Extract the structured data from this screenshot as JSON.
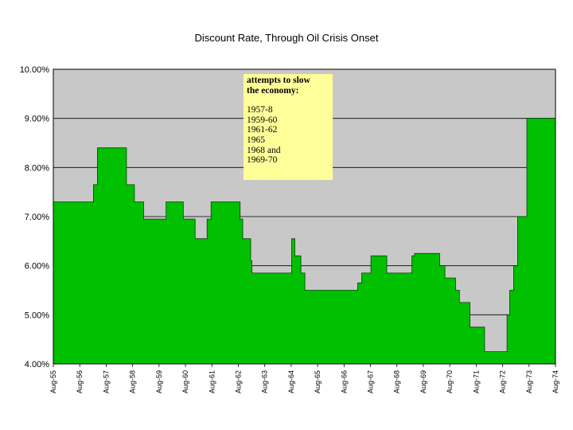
{
  "chart_data": {
    "type": "area",
    "title": "Discount Rate, Through Oil Crisis Onset",
    "xlabel": "",
    "ylabel": "",
    "ylim": [
      4.0,
      10.0
    ],
    "yticks": [
      "4.00%",
      "5.00%",
      "6.00%",
      "7.00%",
      "8.00%",
      "9.00%",
      "10.00%"
    ],
    "ytick_values": [
      4,
      5,
      6,
      7,
      8,
      9,
      10
    ],
    "xticks": [
      "Aug-55",
      "Aug-56",
      "Aug-57",
      "Aug-58",
      "Aug-59",
      "Aug-60",
      "Aug-61",
      "Aug-62",
      "Aug-63",
      "Aug-64",
      "Aug-65",
      "Aug-66",
      "Aug-67",
      "Aug-68",
      "Aug-69",
      "Aug-70",
      "Aug-71",
      "Aug-72",
      "Aug-73",
      "Aug-74"
    ],
    "x_range_years": [
      1955.583,
      1974.583
    ],
    "grid": true,
    "fill_color": "#00c000",
    "plot_bg": "#c8c8c8",
    "series": [
      {
        "steps": [
          [
            1955.58,
            7.3
          ],
          [
            1957.1,
            7.65
          ],
          [
            1957.25,
            8.4
          ],
          [
            1958.35,
            7.65
          ],
          [
            1958.65,
            7.3
          ],
          [
            1959.0,
            6.95
          ],
          [
            1959.85,
            7.3
          ],
          [
            1960.5,
            6.95
          ],
          [
            1960.95,
            6.55
          ],
          [
            1961.4,
            6.95
          ],
          [
            1961.55,
            7.3
          ],
          [
            1962.65,
            6.95
          ],
          [
            1962.75,
            6.55
          ],
          [
            1963.05,
            6.1
          ],
          [
            1963.1,
            5.85
          ],
          [
            1964.6,
            6.55
          ],
          [
            1964.72,
            6.2
          ],
          [
            1964.95,
            5.85
          ],
          [
            1965.1,
            5.5
          ],
          [
            1967.1,
            5.65
          ],
          [
            1967.25,
            5.85
          ],
          [
            1967.6,
            6.2
          ],
          [
            1968.2,
            5.85
          ],
          [
            1969.15,
            6.2
          ],
          [
            1969.25,
            6.25
          ],
          [
            1970.2,
            6.0
          ],
          [
            1970.4,
            5.75
          ],
          [
            1970.8,
            5.5
          ],
          [
            1970.95,
            5.25
          ],
          [
            1971.35,
            4.75
          ],
          [
            1971.9,
            4.25
          ],
          [
            1972.75,
            5.0
          ],
          [
            1972.85,
            5.5
          ],
          [
            1973.0,
            6.0
          ],
          [
            1973.15,
            7.0
          ],
          [
            1973.5,
            9.0
          ],
          [
            1974.58,
            9.0
          ]
        ]
      }
    ],
    "annotation": {
      "heading": [
        "attempts to slow",
        "the economy:"
      ],
      "periods": [
        "1957-8",
        "1959-60",
        "1961-62",
        "1965",
        "1968 and",
        "1969-70"
      ]
    }
  }
}
